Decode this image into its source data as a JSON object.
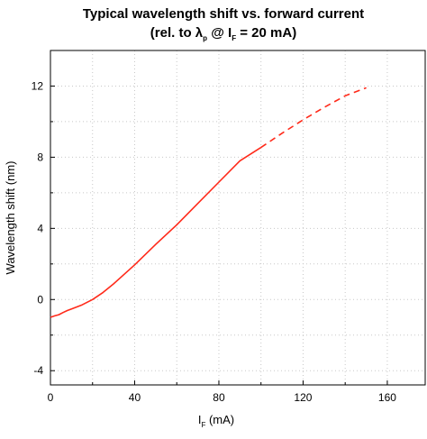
{
  "chart_data": {
    "type": "line",
    "title": {
      "line1": "Typical wavelength shift vs. forward current",
      "line2_prefix": "(rel. to λ",
      "line2_sub1": "p",
      "line2_mid": " @ I",
      "line2_sub2": "F",
      "line2_suffix": " = 20 mA)"
    },
    "xlabel": {
      "main": "I",
      "sub": "F",
      "suffix": " (mA)"
    },
    "ylabel": "Wavelength shift (nm)",
    "xlim": [
      0,
      178
    ],
    "ylim": [
      -4.8,
      14
    ],
    "x_ticks": [
      0,
      40,
      80,
      120,
      160
    ],
    "y_ticks": [
      -4,
      0,
      4,
      8,
      12
    ],
    "grid": true,
    "line_color": "#ff2a1a",
    "series": [
      {
        "style": "solid",
        "x": [
          0,
          2,
          4,
          6,
          8,
          10,
          15,
          20,
          25,
          30,
          40,
          50,
          60,
          70,
          80,
          90,
          100
        ],
        "y": [
          -1.0,
          -0.92,
          -0.85,
          -0.73,
          -0.62,
          -0.53,
          -0.3,
          0.0,
          0.4,
          0.88,
          1.95,
          3.1,
          4.2,
          5.4,
          6.6,
          7.8,
          8.55
        ]
      },
      {
        "style": "dashed",
        "x": [
          100,
          110,
          120,
          130,
          140,
          150
        ],
        "y": [
          8.55,
          9.35,
          10.1,
          10.8,
          11.45,
          11.9
        ]
      }
    ]
  }
}
